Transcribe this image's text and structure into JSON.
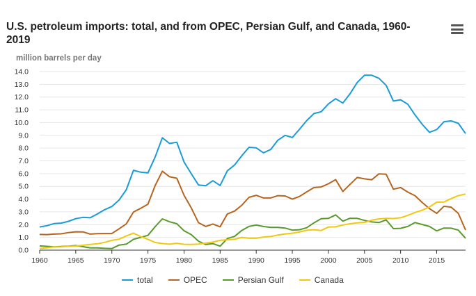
{
  "header": {
    "title": "U.S. petroleum imports: total, and from OPEC, Persian Gulf, and Canada, 1960-2019",
    "menu_icon": "hamburger-menu-icon"
  },
  "chart_data": {
    "type": "line",
    "title": "U.S. petroleum imports: total, and from OPEC, Persian Gulf, and Canada, 1960-2019",
    "ylabel": "million barrels per day",
    "xlabel": "",
    "xlim": [
      1960,
      2019
    ],
    "ylim": [
      0,
      14
    ],
    "x_ticks": [
      1960,
      1965,
      1970,
      1975,
      1980,
      1985,
      1990,
      1995,
      2000,
      2005,
      2010,
      2015
    ],
    "y_ticks": [
      0.0,
      1.0,
      2.0,
      3.0,
      4.0,
      5.0,
      6.0,
      7.0,
      8.0,
      9.0,
      10.0,
      11.0,
      12.0,
      13.0,
      14.0
    ],
    "y_tick_labels": [
      "0.0",
      "1.0",
      "2.0",
      "3.0",
      "4.0",
      "5.0",
      "6.0",
      "7.0",
      "8.0",
      "9.0",
      "10.0",
      "11.0",
      "12.0",
      "13.0",
      "14.0"
    ],
    "grid": "horizontal",
    "legend_position": "bottom",
    "x": [
      1960,
      1961,
      1962,
      1963,
      1964,
      1965,
      1966,
      1967,
      1968,
      1969,
      1970,
      1971,
      1972,
      1973,
      1974,
      1975,
      1976,
      1977,
      1978,
      1979,
      1980,
      1981,
      1982,
      1983,
      1984,
      1985,
      1986,
      1987,
      1988,
      1989,
      1990,
      1991,
      1992,
      1993,
      1994,
      1995,
      1996,
      1997,
      1998,
      1999,
      2000,
      2001,
      2002,
      2003,
      2004,
      2005,
      2006,
      2007,
      2008,
      2009,
      2010,
      2011,
      2012,
      2013,
      2014,
      2015,
      2016,
      2017,
      2018,
      2019
    ],
    "series": [
      {
        "name": "total",
        "color": "#1a9bd7",
        "values": [
          1.82,
          1.92,
          2.08,
          2.12,
          2.26,
          2.47,
          2.57,
          2.54,
          2.84,
          3.17,
          3.42,
          3.93,
          4.74,
          6.26,
          6.11,
          6.06,
          7.31,
          8.81,
          8.36,
          8.46,
          6.91,
          6.0,
          5.11,
          5.05,
          5.44,
          5.07,
          6.22,
          6.68,
          7.4,
          8.06,
          8.02,
          7.63,
          7.89,
          8.62,
          9.0,
          8.83,
          9.48,
          10.16,
          10.71,
          10.85,
          11.46,
          11.87,
          11.53,
          12.26,
          13.15,
          13.71,
          13.71,
          13.47,
          12.92,
          11.69,
          11.79,
          11.44,
          10.6,
          9.86,
          9.24,
          9.45,
          10.06,
          10.14,
          9.94,
          9.14
        ]
      },
      {
        "name": "OPEC",
        "color": "#b5651d",
        "values": [
          1.23,
          1.22,
          1.26,
          1.28,
          1.38,
          1.44,
          1.43,
          1.26,
          1.29,
          1.3,
          1.3,
          1.67,
          2.06,
          2.99,
          3.28,
          3.6,
          5.07,
          6.19,
          5.75,
          5.64,
          4.3,
          3.32,
          2.15,
          1.86,
          2.05,
          1.83,
          2.84,
          3.06,
          3.52,
          4.14,
          4.3,
          4.09,
          4.09,
          4.27,
          4.25,
          4.0,
          4.21,
          4.57,
          4.91,
          4.95,
          5.2,
          5.53,
          4.6,
          5.16,
          5.7,
          5.59,
          5.52,
          5.98,
          5.95,
          4.78,
          4.91,
          4.55,
          4.27,
          3.73,
          3.26,
          2.88,
          3.44,
          3.37,
          2.88,
          1.58
        ]
      },
      {
        "name": "Persian Gulf",
        "color": "#5a9a2c",
        "values": [
          0.33,
          0.3,
          0.26,
          0.29,
          0.31,
          0.36,
          0.27,
          0.18,
          0.18,
          0.14,
          0.12,
          0.4,
          0.47,
          0.85,
          1.0,
          1.16,
          1.84,
          2.45,
          2.22,
          2.07,
          1.52,
          1.22,
          0.7,
          0.44,
          0.51,
          0.31,
          0.91,
          1.08,
          1.54,
          1.86,
          1.97,
          1.85,
          1.78,
          1.78,
          1.73,
          1.57,
          1.6,
          1.76,
          2.14,
          2.46,
          2.49,
          2.76,
          2.27,
          2.5,
          2.49,
          2.33,
          2.21,
          2.16,
          2.37,
          1.69,
          1.71,
          1.86,
          2.16,
          2.01,
          1.86,
          1.51,
          1.73,
          1.72,
          1.57,
          0.93
        ]
      },
      {
        "name": "Canada",
        "color": "#f2c80f",
        "values": [
          0.12,
          0.19,
          0.25,
          0.26,
          0.3,
          0.32,
          0.38,
          0.45,
          0.5,
          0.61,
          0.77,
          0.86,
          1.11,
          1.33,
          1.07,
          0.85,
          0.6,
          0.52,
          0.47,
          0.54,
          0.46,
          0.45,
          0.48,
          0.55,
          0.63,
          0.77,
          0.81,
          0.85,
          1.0,
          0.93,
          0.93,
          1.03,
          1.07,
          1.18,
          1.27,
          1.33,
          1.42,
          1.56,
          1.6,
          1.54,
          1.81,
          1.83,
          1.97,
          2.07,
          2.14,
          2.18,
          2.35,
          2.45,
          2.49,
          2.48,
          2.54,
          2.73,
          2.95,
          3.14,
          3.39,
          3.76,
          3.77,
          4.04,
          4.27,
          4.4
        ]
      }
    ]
  }
}
